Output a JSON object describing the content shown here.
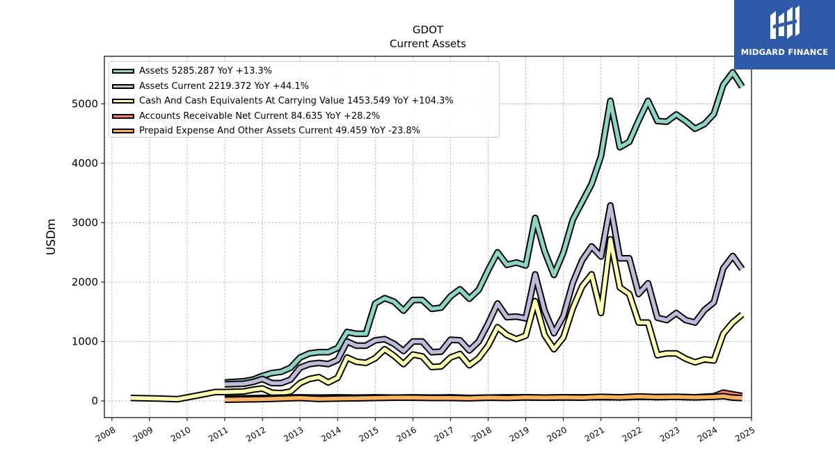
{
  "chart_data": {
    "type": "line",
    "title": "GDOT",
    "subtitle": "Current  Assets",
    "ylabel": "USDm",
    "xlabel": "",
    "xlim": [
      2007.8,
      2025.0
    ],
    "ylim": [
      -280,
      5800
    ],
    "x_ticks": [
      "2008",
      "2009",
      "2010",
      "2011",
      "2012",
      "2013",
      "2014",
      "2015",
      "2016",
      "2017",
      "2018",
      "2019",
      "2020",
      "2021",
      "2022",
      "2023",
      "2024",
      "2025"
    ],
    "y_ticks": [
      "0",
      "1000",
      "2000",
      "3000",
      "4000",
      "5000"
    ],
    "grid": true,
    "legend_position": "top-left",
    "series": [
      {
        "name": "Assets",
        "legend": "Assets  5285.287 YoY +13.3%",
        "color": "#8dd3c7",
        "x": [
          2011.0,
          2011.5,
          2011.75,
          2012.0,
          2012.25,
          2012.5,
          2012.75,
          2013.0,
          2013.25,
          2013.5,
          2013.75,
          2014.0,
          2014.25,
          2014.5,
          2014.75,
          2015.0,
          2015.25,
          2015.5,
          2015.75,
          2016.0,
          2016.25,
          2016.5,
          2016.75,
          2017.0,
          2017.25,
          2017.5,
          2017.75,
          2018.0,
          2018.25,
          2018.5,
          2018.75,
          2019.0,
          2019.25,
          2019.5,
          2019.75,
          2020.0,
          2020.25,
          2020.5,
          2020.75,
          2021.0,
          2021.25,
          2021.5,
          2021.75,
          2022.0,
          2022.25,
          2022.5,
          2022.75,
          2023.0,
          2023.25,
          2023.5,
          2023.75,
          2024.0,
          2024.25,
          2024.5,
          2024.75
        ],
        "y": [
          310,
          330,
          360,
          420,
          470,
          490,
          560,
          730,
          800,
          820,
          820,
          890,
          1160,
          1130,
          1130,
          1640,
          1730,
          1670,
          1520,
          1700,
          1700,
          1550,
          1570,
          1760,
          1880,
          1720,
          1870,
          2200,
          2500,
          2290,
          2330,
          2280,
          3080,
          2520,
          2120,
          2500,
          3050,
          3350,
          3650,
          4120,
          5050,
          4270,
          4360,
          4720,
          5050,
          4710,
          4700,
          4820,
          4710,
          4580,
          4660,
          4830,
          5320,
          5530,
          5285
        ]
      },
      {
        "name": "Assets Current",
        "legend": "Assets Current  2219.372 YoY +44.1%",
        "color": "#bebada",
        "x": [
          2011.0,
          2011.5,
          2011.75,
          2012.0,
          2012.25,
          2012.5,
          2012.75,
          2013.0,
          2013.25,
          2013.5,
          2013.75,
          2014.0,
          2014.25,
          2014.5,
          2014.75,
          2015.0,
          2015.25,
          2015.5,
          2015.75,
          2016.0,
          2016.25,
          2016.5,
          2016.75,
          2017.0,
          2017.25,
          2017.5,
          2017.75,
          2018.0,
          2018.25,
          2018.5,
          2018.75,
          2019.0,
          2019.25,
          2019.5,
          2019.75,
          2020.0,
          2020.25,
          2020.5,
          2020.75,
          2021.0,
          2021.25,
          2021.5,
          2021.75,
          2022.0,
          2022.25,
          2022.5,
          2022.75,
          2023.0,
          2023.25,
          2023.5,
          2023.75,
          2024.0,
          2024.25,
          2024.5,
          2024.75
        ],
        "y": [
          280,
          290,
          320,
          370,
          300,
          300,
          360,
          560,
          620,
          640,
          620,
          690,
          1000,
          930,
          930,
          1020,
          1040,
          960,
          840,
          1000,
          1000,
          820,
          830,
          1030,
          1020,
          850,
          1000,
          1300,
          1640,
          1410,
          1420,
          1390,
          2130,
          1520,
          1140,
          1430,
          1990,
          2370,
          2600,
          2430,
          3290,
          2400,
          2400,
          1800,
          1980,
          1400,
          1360,
          1480,
          1360,
          1320,
          1530,
          1660,
          2230,
          2440,
          2219
        ]
      },
      {
        "name": "Cash And Cash Equivalents At Carrying Value",
        "legend": "Cash And Cash Equivalents At Carrying Value  1453.549 YoY +104.3%",
        "color": "#ffffb3",
        "x": [
          2008.5,
          2009.25,
          2009.75,
          2010.0,
          2010.25,
          2010.5,
          2010.75,
          2011.0,
          2011.5,
          2011.75,
          2012.0,
          2012.25,
          2012.5,
          2012.75,
          2013.0,
          2013.25,
          2013.5,
          2013.75,
          2014.0,
          2014.25,
          2014.5,
          2014.75,
          2015.0,
          2015.25,
          2015.5,
          2015.75,
          2016.0,
          2016.25,
          2016.5,
          2016.75,
          2017.0,
          2017.25,
          2017.5,
          2017.75,
          2018.0,
          2018.25,
          2018.5,
          2018.75,
          2019.0,
          2019.25,
          2019.5,
          2019.75,
          2020.0,
          2020.25,
          2020.5,
          2020.75,
          2021.0,
          2021.25,
          2021.5,
          2021.75,
          2022.0,
          2022.25,
          2022.5,
          2022.75,
          2023.0,
          2023.25,
          2023.5,
          2023.75,
          2024.0,
          2024.25,
          2024.5,
          2024.75
        ],
        "y": [
          50,
          40,
          30,
          60,
          90,
          120,
          150,
          150,
          160,
          190,
          210,
          140,
          130,
          160,
          300,
          370,
          400,
          310,
          390,
          730,
          660,
          640,
          720,
          870,
          760,
          620,
          780,
          750,
          570,
          580,
          730,
          790,
          600,
          720,
          930,
          1240,
          1110,
          1040,
          1100,
          1680,
          1110,
          870,
          1070,
          1560,
          1930,
          2130,
          1480,
          2720,
          1910,
          1800,
          1320,
          1320,
          770,
          800,
          800,
          710,
          650,
          700,
          680,
          1130,
          1320,
          1453
        ]
      },
      {
        "name": "Accounts Receivable Net Current",
        "legend": "Accounts Receivable Net Current  84.635 YoY +28.2%",
        "color": "#fb8072",
        "x": [
          2011.0,
          2011.5,
          2012.0,
          2012.5,
          2013.0,
          2013.5,
          2014.0,
          2014.5,
          2015.0,
          2015.5,
          2016.0,
          2016.5,
          2017.0,
          2017.5,
          2018.0,
          2018.5,
          2019.0,
          2019.5,
          2020.0,
          2020.5,
          2021.0,
          2021.5,
          2022.0,
          2022.5,
          2023.0,
          2023.5,
          2024.0,
          2024.25,
          2024.5,
          2024.75
        ],
        "y": [
          40,
          45,
          50,
          55,
          60,
          55,
          60,
          55,
          60,
          55,
          60,
          55,
          60,
          50,
          55,
          60,
          60,
          55,
          60,
          60,
          65,
          60,
          70,
          65,
          70,
          60,
          80,
          140,
          110,
          85
        ]
      },
      {
        "name": "Prepaid Expense And Other Assets Current",
        "legend": "Prepaid Expense And Other Assets Current  49.459 YoY -23.8%",
        "color": "#fdb462",
        "x": [
          2011.0,
          2011.5,
          2012.0,
          2012.5,
          2013.0,
          2013.5,
          2014.0,
          2014.5,
          2015.0,
          2015.5,
          2016.0,
          2016.5,
          2017.0,
          2017.5,
          2018.0,
          2018.5,
          2019.0,
          2019.5,
          2020.0,
          2020.5,
          2021.0,
          2021.5,
          2022.0,
          2022.5,
          2023.0,
          2023.5,
          2024.0,
          2024.25,
          2024.5,
          2024.75
        ],
        "y": [
          20,
          25,
          30,
          40,
          50,
          35,
          40,
          45,
          50,
          55,
          55,
          50,
          50,
          45,
          55,
          50,
          60,
          55,
          60,
          55,
          70,
          60,
          75,
          65,
          70,
          60,
          70,
          80,
          55,
          49
        ]
      }
    ]
  },
  "brand": {
    "name": "MIDGARD FINANCE",
    "color": "#2f5aa8",
    "icon": "mf-monogram-icon"
  }
}
